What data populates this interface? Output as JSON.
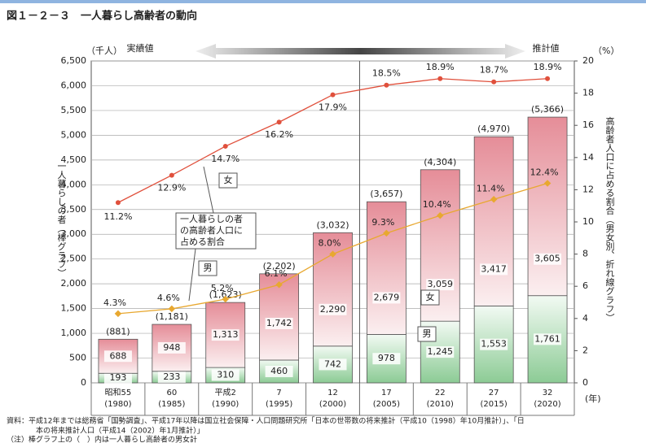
{
  "chart_data": {
    "type": "bar",
    "title": "図１－２－３　一人暮らし高齢者の動向",
    "y_unit": "（千人）",
    "y2_unit": "（%）",
    "x_unit": "(年)",
    "actual_label": "実績値",
    "estimate_label": "推計値",
    "y_label": "一人暮らしの者（棒グラフ）",
    "y2_label": "高齢者人口に占める割合（男女別、折れ線グラフ）",
    "categories": [
      "昭和55",
      "60",
      "平成2",
      "7",
      "12",
      "17",
      "22",
      "27",
      "32"
    ],
    "category_sublabels": [
      "(1980)",
      "(1985)",
      "(1990)",
      "(1995)",
      "(2000)",
      "(2005)",
      "(2010)",
      "(2015)",
      "(2020)"
    ],
    "series": [
      {
        "name": "男",
        "color": "#9fd3a6",
        "values": [
          193,
          233,
          310,
          460,
          742,
          978,
          1245,
          1553,
          1761
        ],
        "value_labels": [
          "193",
          "233",
          "310",
          "460",
          "742",
          "978",
          "1,245",
          "1,553",
          "1,761"
        ]
      },
      {
        "name": "女",
        "color": "#e9a2aa",
        "values": [
          688,
          948,
          1313,
          1742,
          2290,
          2679,
          3059,
          3417,
          3605
        ],
        "value_labels": [
          "688",
          "948",
          "1,313",
          "1,742",
          "2,290",
          "2,679",
          "3,059",
          "3,417",
          "3,605"
        ]
      }
    ],
    "totals": [
      881,
      1181,
      1623,
      2202,
      3032,
      3657,
      4304,
      4970,
      5366
    ],
    "total_labels": [
      "(881)",
      "(1,181)",
      "(1,623)",
      "(2,202)",
      "(3,032)",
      "(3,657)",
      "(4,304)",
      "(4,970)",
      "(5,366)"
    ],
    "line_series": [
      {
        "name": "女",
        "color": "#e0503c",
        "axis": "y2",
        "values": [
          11.2,
          12.9,
          14.7,
          16.2,
          17.9,
          18.5,
          18.9,
          18.7,
          18.9
        ],
        "value_labels": [
          "11.2%",
          "12.9%",
          "14.7%",
          "16.2%",
          "17.9%",
          "18.5%",
          "18.9%",
          "18.7%",
          "18.9%"
        ]
      },
      {
        "name": "男",
        "color": "#e8a830",
        "axis": "y2",
        "values": [
          4.3,
          4.6,
          5.2,
          6.1,
          8.0,
          9.3,
          10.4,
          11.4,
          12.4
        ],
        "value_labels": [
          "4.3%",
          "4.6%",
          "5.2%",
          "6.1%",
          "8.0%",
          "9.3%",
          "10.4%",
          "11.4%",
          "12.4%"
        ]
      }
    ],
    "callout": [
      "一人暮らしの者",
      "の高齢者人口に",
      "占める割合"
    ],
    "ylim": [
      0,
      6500
    ],
    "yticks": [
      0,
      500,
      {
        "value": 1000,
        "label": "1,000"
      },
      {
        "value": 1500,
        "label": "1,500"
      },
      {
        "value": 2000,
        "label": "2,000"
      },
      {
        "value": 2500,
        "label": "2,500"
      },
      {
        "value": 3000,
        "label": "3,000"
      },
      {
        "value": 3500,
        "label": "3,500"
      },
      {
        "value": 4000,
        "label": "4,000"
      },
      {
        "value": 4500,
        "label": "4,500"
      },
      {
        "value": 5000,
        "label": "5,000"
      },
      {
        "value": 5500,
        "label": "5,500"
      },
      {
        "value": 6000,
        "label": "6,000"
      },
      {
        "value": 6500,
        "label": "6,500"
      }
    ],
    "y2lim": [
      0,
      20
    ],
    "y2ticks": [
      0,
      2,
      4,
      6,
      8,
      10,
      12,
      14,
      16,
      18,
      20
    ],
    "grid": true,
    "source": [
      "資料：平成12年までは総務省「国勢調査」、平成17年以降は国立社会保障・人口問題研究所「日本の世帯数の将来推計（平成10（1998）年10月推計）」、「日",
      "本の将来推計人口（平成14（2002）年1月推計）」"
    ],
    "note": "（注）棒グラフ上の（　）内は一人暮らし高齢者の男女計"
  }
}
